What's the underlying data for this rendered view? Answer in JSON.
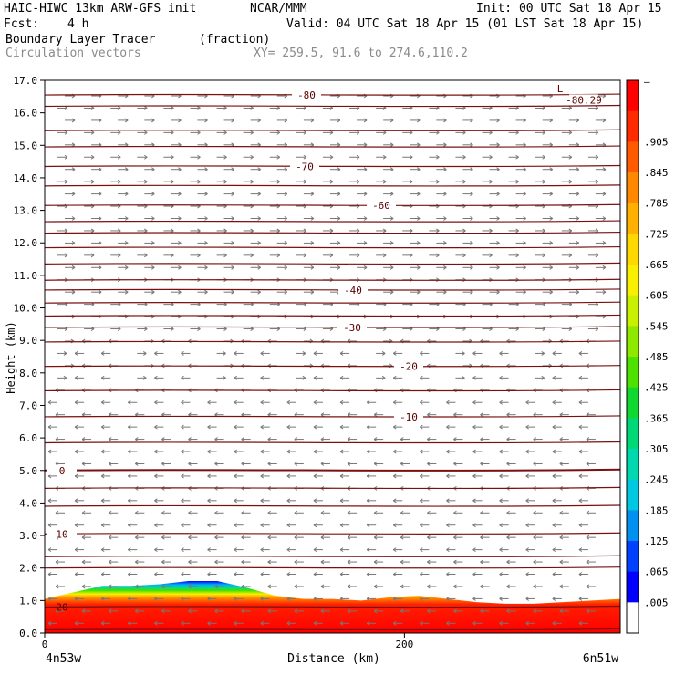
{
  "header": {
    "model": "HAIC-HIWC 13km ARW-GFS init",
    "org": "NCAR/MMM",
    "init": "Init: 00 UTC Sat 18 Apr 15",
    "fcst_label": "Fcst:",
    "fcst_value": "4 h",
    "valid": "Valid: 04 UTC Sat 18 Apr 15 (01 LST Sat 18 Apr 15)",
    "field": "Boundary Layer Tracer",
    "field_units": "(fraction)",
    "vectors": "Circulation vectors",
    "xy": "XY= 259.5, 91.6 to 274.6,110.2"
  },
  "axes": {
    "ylabel": "Height (km)",
    "xlabel": "Distance (km)",
    "x_left_label": "4n53w",
    "x_right_label": "6n51w",
    "x_ticks": [
      "0",
      "200"
    ]
  },
  "colorbar": {
    "labels": [
      ".905",
      ".845",
      ".785",
      ".725",
      ".665",
      ".605",
      ".545",
      ".485",
      ".425",
      ".365",
      ".305",
      ".245",
      ".185",
      ".125",
      ".065",
      ".005"
    ],
    "top_label": "–",
    "colors": [
      "#ff0000",
      "#ff2a00",
      "#ff5a00",
      "#ff8800",
      "#ffb000",
      "#ffd800",
      "#f8f000",
      "#c8f000",
      "#8ee800",
      "#4ee000",
      "#10d830",
      "#00d878",
      "#00d8b0",
      "#00c8e0",
      "#0090f0",
      "#0040ff",
      "#0000ff",
      "#ffffff"
    ]
  },
  "chart_data": {
    "type": "contour-cross-section",
    "x_range_km": [
      0,
      320
    ],
    "y_range_km": [
      0,
      17
    ],
    "y_ticks": [
      "0.0",
      "1.0",
      "2.0",
      "3.0",
      "4.0",
      "5.0",
      "6.0",
      "7.0",
      "8.0",
      "9.0",
      "10.0",
      "11.0",
      "12.0",
      "13.0",
      "14.0",
      "15.0",
      "16.0",
      "17.0"
    ],
    "temperature_contours": [
      {
        "label": "20",
        "height_km": 0.8
      },
      {
        "label": "10",
        "height_km": 3.05
      },
      {
        "label": "0",
        "height_km": 5.0
      },
      {
        "label": "-10",
        "height_km": 6.65
      },
      {
        "label": "-20",
        "height_km": 8.2
      },
      {
        "label": "-30",
        "height_km": 9.4
      },
      {
        "label": "-40",
        "height_km": 10.55
      },
      {
        "label": "-60",
        "height_km": 13.15
      },
      {
        "label": "-70",
        "height_km": 14.35
      },
      {
        "label": "-80",
        "height_km": 16.55
      },
      {
        "label": "-80.29",
        "height_km": 16.4
      },
      {
        "label": "L",
        "height_km": 16.75
      }
    ],
    "boundary_layer_top_km": [
      1.05,
      1.25,
      1.45,
      1.45,
      1.5,
      1.6,
      1.6,
      1.4,
      1.15,
      1.05,
      1.05,
      1.0,
      1.1,
      1.15,
      1.05,
      0.95,
      0.9,
      0.9,
      0.95,
      1.0,
      1.05
    ]
  }
}
